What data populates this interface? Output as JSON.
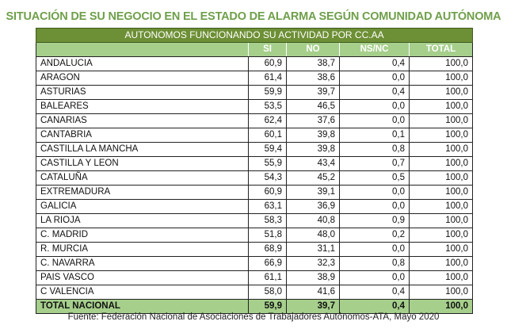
{
  "title": "SITUACIÓN DE SU NEGOCIO EN EL ESTADO DE ALARMA SEGÚN COMUNIDAD AUTÓNOMA",
  "table_caption": "AUTONOMOS FUNCIONANDO SU ACTIVIDAD POR CC.AA",
  "columns": [
    "",
    "SI",
    "NO",
    "NS/NC",
    "TOTAL"
  ],
  "rows": [
    {
      "region": "ANDALUCIA",
      "si": "60,9",
      "no": "38,7",
      "nsnc": "0,4",
      "total": "100,0"
    },
    {
      "region": "ARAGON",
      "si": "61,4",
      "no": "38,6",
      "nsnc": "0,0",
      "total": "100,0"
    },
    {
      "region": "ASTURIAS",
      "si": "59,9",
      "no": "39,7",
      "nsnc": "0,4",
      "total": "100,0"
    },
    {
      "region": "BALEARES",
      "si": "53,5",
      "no": "46,5",
      "nsnc": "0,0",
      "total": "100,0"
    },
    {
      "region": "CANARIAS",
      "si": "62,4",
      "no": "37,6",
      "nsnc": "0,0",
      "total": "100,0"
    },
    {
      "region": "CANTABRIA",
      "si": "60,1",
      "no": "39,8",
      "nsnc": "0,1",
      "total": "100,0"
    },
    {
      "region": "CASTILLA LA MANCHA",
      "si": "59,4",
      "no": "39,8",
      "nsnc": "0,8",
      "total": "100,0"
    },
    {
      "region": "CASTILLA Y LEON",
      "si": "55,9",
      "no": "43,4",
      "nsnc": "0,7",
      "total": "100,0"
    },
    {
      "region": "CATALUÑA",
      "si": "54,3",
      "no": "45,2",
      "nsnc": "0,5",
      "total": "100,0"
    },
    {
      "region": "EXTREMADURA",
      "si": "60,9",
      "no": "39,1",
      "nsnc": "0,0",
      "total": "100,0"
    },
    {
      "region": "GALICIA",
      "si": "63,1",
      "no": "36,9",
      "nsnc": "0,0",
      "total": "100,0"
    },
    {
      "region": "LA RIOJA",
      "si": "58,3",
      "no": "40,8",
      "nsnc": "0,9",
      "total": "100,0"
    },
    {
      "region": "C. MADRID",
      "si": "51,8",
      "no": "48,0",
      "nsnc": "0,2",
      "total": "100,0"
    },
    {
      "region": "R. MURCIA",
      "si": "68,9",
      "no": "31,1",
      "nsnc": "0,0",
      "total": "100,0"
    },
    {
      "region": "C. NAVARRA",
      "si": "66,9",
      "no": "32,3",
      "nsnc": "0,8",
      "total": "100,0"
    },
    {
      "region": "PAIS VASCO",
      "si": "61,1",
      "no": "38,9",
      "nsnc": "0,0",
      "total": "100,0"
    },
    {
      "region": "C VALENCIA",
      "si": "58,0",
      "no": "41,6",
      "nsnc": "0,4",
      "total": "100,0"
    }
  ],
  "total_row": {
    "region": "TOTAL NACIONAL",
    "si": "59,9",
    "no": "39,7",
    "nsnc": "0,4",
    "total": "100,0"
  },
  "source": "Fuente: Federación Nacional de Asociaciones de Trabajadores Autónomos-ATA, Mayo 2020",
  "colors": {
    "title": "#6f9f4a",
    "caption_bg": "#6d8f35",
    "header_bg": "#a6cf8c",
    "total_bg": "#a6cf8c"
  },
  "chart_data": {
    "type": "table",
    "title": "SITUACIÓN DE SU NEGOCIO EN EL ESTADO DE ALARMA SEGÚN COMUNIDAD AUTÓNOMA",
    "subtitle": "AUTONOMOS FUNCIONANDO SU ACTIVIDAD POR CC.AA",
    "categories": [
      "ANDALUCIA",
      "ARAGON",
      "ASTURIAS",
      "BALEARES",
      "CANARIAS",
      "CANTABRIA",
      "CASTILLA LA MANCHA",
      "CASTILLA Y LEON",
      "CATALUÑA",
      "EXTREMADURA",
      "GALICIA",
      "LA RIOJA",
      "C. MADRID",
      "R. MURCIA",
      "C. NAVARRA",
      "PAIS VASCO",
      "C VALENCIA",
      "TOTAL NACIONAL"
    ],
    "series": [
      {
        "name": "SI",
        "values": [
          60.9,
          61.4,
          59.9,
          53.5,
          62.4,
          60.1,
          59.4,
          55.9,
          54.3,
          60.9,
          63.1,
          58.3,
          51.8,
          68.9,
          66.9,
          61.1,
          58.0,
          59.9
        ]
      },
      {
        "name": "NO",
        "values": [
          38.7,
          38.6,
          39.7,
          46.5,
          37.6,
          39.8,
          39.8,
          43.4,
          45.2,
          39.1,
          36.9,
          40.8,
          48.0,
          31.1,
          32.3,
          38.9,
          41.6,
          39.7
        ]
      },
      {
        "name": "NS/NC",
        "values": [
          0.4,
          0.0,
          0.4,
          0.0,
          0.0,
          0.1,
          0.8,
          0.7,
          0.5,
          0.0,
          0.0,
          0.9,
          0.2,
          0.0,
          0.8,
          0.0,
          0.4,
          0.4
        ]
      },
      {
        "name": "TOTAL",
        "values": [
          100.0,
          100.0,
          100.0,
          100.0,
          100.0,
          100.0,
          100.0,
          100.0,
          100.0,
          100.0,
          100.0,
          100.0,
          100.0,
          100.0,
          100.0,
          100.0,
          100.0,
          100.0
        ]
      }
    ],
    "note": "Fuente: Federación Nacional de Asociaciones de Trabajadores Autónomos-ATA, Mayo 2020"
  }
}
